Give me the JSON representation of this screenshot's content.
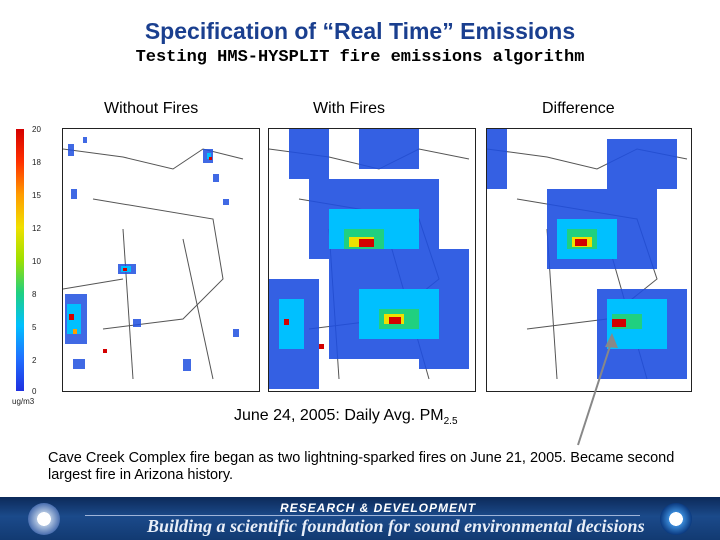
{
  "header": {
    "title": "Specification of “Real Time” Emissions",
    "subtitle": "Testing HMS-HYSPLIT fire emissions algorithm"
  },
  "panels": [
    {
      "label": "Without Fires"
    },
    {
      "label": "With Fires"
    },
    {
      "label": "Difference"
    }
  ],
  "legend": {
    "ticks": [
      "20",
      "18",
      "15",
      "12",
      "10",
      "8",
      "5",
      "2",
      "0"
    ],
    "unit": "ug/m3",
    "colors": [
      "#d40000",
      "#ff3000",
      "#ff9c00",
      "#f0e000",
      "#9ee000",
      "#20d080",
      "#00c0ff",
      "#2070ff",
      "#1f30e0"
    ]
  },
  "caption": {
    "text": "June 24, 2005: Daily Avg. PM",
    "sub": "2.5"
  },
  "note": "Cave Creek Complex fire began as two lightning-sparked fires on June 21, 2005. Became second largest fire in Arizona history.",
  "footer": {
    "top": "RESEARCH & DEVELOPMENT",
    "bottom": "Building a scientific foundation for sound environmental decisions"
  }
}
